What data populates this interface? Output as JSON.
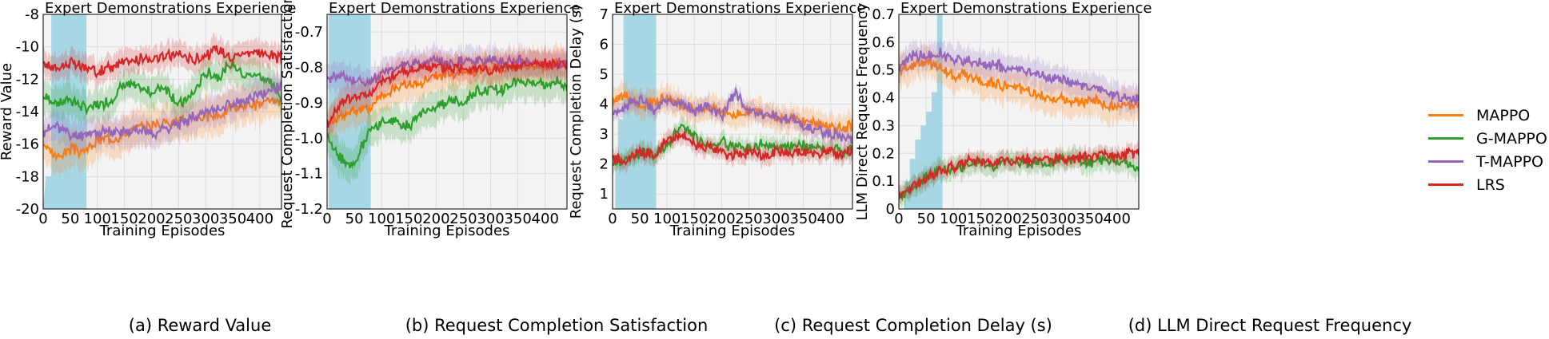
{
  "colors": {
    "MAPPO": "#ff7f0e",
    "G-MAPPO": "#2ca02c",
    "T-MAPPO": "#9467bd",
    "LRS": "#d62728",
    "expert": "#9fd3e3",
    "panel_bg": "#f4f4f4",
    "grid": "#dddddd"
  },
  "legend": [
    "MAPPO",
    "G-MAPPO",
    "T-MAPPO",
    "LRS"
  ],
  "captions": [
    "(a) Reward Value",
    "(b) Request Completion Satisfaction",
    "(c) Request Completion Delay (s)",
    "(d) LLM Direct Request Frequency"
  ],
  "chart_data": [
    {
      "type": "line",
      "title": "Expert Demonstrations Experience",
      "xlabel": "Training Episodes",
      "ylabel": "Reward Value",
      "xlim": [
        0,
        440
      ],
      "ylim": [
        -20,
        -8
      ],
      "xticks": [
        0,
        50,
        100,
        150,
        200,
        250,
        300,
        350,
        400
      ],
      "yticks": [
        -20,
        -18,
        -16,
        -14,
        -12,
        -10,
        -8
      ],
      "ytick_labels": [
        "-20",
        "-18",
        "-16",
        "-14",
        "-12",
        "-10",
        "-8"
      ],
      "expert_region": {
        "x_end": 80,
        "stair": [
          [
            0,
            -20
          ],
          [
            5,
            -18
          ],
          [
            15,
            -18
          ],
          [
            15,
            -8
          ],
          [
            80,
            -8
          ]
        ]
      },
      "x": [
        0,
        25,
        50,
        75,
        100,
        125,
        150,
        175,
        200,
        225,
        250,
        275,
        300,
        325,
        350,
        375,
        400,
        425,
        440
      ],
      "series": [
        {
          "name": "MAPPO",
          "values": [
            -16.0,
            -16.8,
            -16.3,
            -16.5,
            -15.8,
            -15.6,
            -15.4,
            -15.0,
            -14.8,
            -14.6,
            -14.6,
            -14.4,
            -14.3,
            -14.2,
            -13.7,
            -13.6,
            -13.5,
            -13.4,
            -13.3
          ],
          "band": 1.2
        },
        {
          "name": "G-MAPPO",
          "values": [
            -13.0,
            -13.5,
            -13.2,
            -13.8,
            -13.6,
            -13.3,
            -12.2,
            -12.6,
            -12.8,
            -12.4,
            -13.6,
            -13.0,
            -11.6,
            -11.8,
            -11.0,
            -11.8,
            -11.7,
            -12.4,
            -13.2
          ],
          "band": 1.0
        },
        {
          "name": "T-MAPPO",
          "values": [
            -15.3,
            -14.8,
            -15.5,
            -15.4,
            -15.3,
            -15.2,
            -15.3,
            -15.0,
            -15.4,
            -15.0,
            -14.8,
            -14.3,
            -14.0,
            -13.8,
            -13.5,
            -13.4,
            -13.0,
            -12.6,
            -12.3
          ],
          "band": 1.0
        },
        {
          "name": "LRS",
          "values": [
            -11.0,
            -11.3,
            -11.0,
            -11.3,
            -11.5,
            -11.2,
            -11.0,
            -10.8,
            -10.7,
            -10.6,
            -10.4,
            -10.8,
            -10.5,
            -10.2,
            -10.6,
            -10.3,
            -10.4,
            -10.5,
            -10.8
          ],
          "band": 0.8
        }
      ]
    },
    {
      "type": "line",
      "title": "Expert Demonstrations Experience",
      "xlabel": "Training Episodes",
      "ylabel": "Request Completion Satisfaction",
      "xlim": [
        0,
        440
      ],
      "ylim": [
        -1.2,
        -0.65
      ],
      "xticks": [
        0,
        50,
        100,
        150,
        200,
        250,
        300,
        350,
        400
      ],
      "yticks": [
        -1.2,
        -1.1,
        -1.0,
        -0.9,
        -0.8,
        -0.7
      ],
      "ytick_labels": [
        "-1.2",
        "-1.1",
        "-1.0",
        "-0.9",
        "-0.8",
        "-0.7"
      ],
      "expert_region": {
        "x_end": 80,
        "stair": [
          [
            0,
            -1.2
          ],
          [
            3,
            -1.2
          ],
          [
            3,
            -0.65
          ],
          [
            80,
            -0.65
          ]
        ]
      },
      "x": [
        0,
        25,
        50,
        75,
        100,
        125,
        150,
        175,
        200,
        225,
        250,
        275,
        300,
        325,
        350,
        375,
        400,
        425,
        440
      ],
      "series": [
        {
          "name": "MAPPO",
          "values": [
            -0.95,
            -0.94,
            -0.92,
            -0.92,
            -0.88,
            -0.86,
            -0.85,
            -0.84,
            -0.82,
            -0.82,
            -0.81,
            -0.81,
            -0.8,
            -0.8,
            -0.8,
            -0.79,
            -0.8,
            -0.79,
            -0.79
          ],
          "band": 0.05
        },
        {
          "name": "G-MAPPO",
          "values": [
            -1.0,
            -1.06,
            -1.08,
            -0.98,
            -0.95,
            -0.95,
            -0.97,
            -0.92,
            -0.91,
            -0.89,
            -0.9,
            -0.87,
            -0.86,
            -0.86,
            -0.84,
            -0.84,
            -0.85,
            -0.83,
            -0.86
          ],
          "band": 0.05
        },
        {
          "name": "T-MAPPO",
          "values": [
            -0.84,
            -0.82,
            -0.84,
            -0.84,
            -0.82,
            -0.8,
            -0.79,
            -0.79,
            -0.78,
            -0.79,
            -0.78,
            -0.78,
            -0.78,
            -0.79,
            -0.78,
            -0.79,
            -0.79,
            -0.79,
            -0.79
          ],
          "band": 0.04
        },
        {
          "name": "LRS",
          "values": [
            -0.96,
            -0.9,
            -0.88,
            -0.88,
            -0.84,
            -0.82,
            -0.81,
            -0.8,
            -0.8,
            -0.8,
            -0.8,
            -0.8,
            -0.81,
            -0.8,
            -0.8,
            -0.79,
            -0.79,
            -0.79,
            -0.79
          ],
          "band": 0.04
        }
      ]
    },
    {
      "type": "line",
      "title": "Expert Demonstrations Experience",
      "xlabel": "Training Episodes",
      "ylabel": "Request Completion Delay (s)",
      "xlim": [
        0,
        440
      ],
      "ylim": [
        0.5,
        7
      ],
      "xticks": [
        0,
        50,
        100,
        150,
        200,
        250,
        300,
        350,
        400
      ],
      "yticks": [
        1,
        2,
        3,
        4,
        5,
        6,
        7
      ],
      "ytick_labels": [
        "1",
        "2",
        "3",
        "4",
        "5",
        "6",
        "7"
      ],
      "expert_region": {
        "x_end": 80,
        "stair": [
          [
            0,
            0.5
          ],
          [
            5,
            0.5
          ],
          [
            5,
            2.2
          ],
          [
            10,
            2.2
          ],
          [
            10,
            3.5
          ],
          [
            20,
            3.5
          ],
          [
            20,
            7
          ],
          [
            80,
            7
          ]
        ]
      },
      "x": [
        0,
        25,
        50,
        75,
        100,
        125,
        150,
        175,
        200,
        225,
        250,
        275,
        300,
        325,
        350,
        375,
        400,
        425,
        440
      ],
      "series": [
        {
          "name": "MAPPO",
          "values": [
            4.1,
            4.3,
            4.0,
            4.1,
            4.2,
            4.0,
            3.8,
            3.9,
            3.8,
            3.6,
            3.8,
            3.7,
            3.6,
            3.5,
            3.4,
            3.4,
            3.2,
            3.2,
            3.3
          ],
          "band": 0.45
        },
        {
          "name": "G-MAPPO",
          "values": [
            2.0,
            2.2,
            2.4,
            2.3,
            2.6,
            3.3,
            2.9,
            2.6,
            2.7,
            2.6,
            2.5,
            2.7,
            2.6,
            2.6,
            2.6,
            2.5,
            2.5,
            2.4,
            2.5
          ],
          "band": 0.3
        },
        {
          "name": "T-MAPPO",
          "values": [
            3.6,
            3.9,
            4.2,
            3.8,
            4.1,
            4.0,
            3.8,
            3.9,
            3.6,
            4.4,
            3.8,
            3.6,
            3.6,
            3.5,
            3.2,
            3.1,
            3.0,
            2.9,
            2.9
          ],
          "band": 0.3
        },
        {
          "name": "LRS",
          "values": [
            2.2,
            2.1,
            2.4,
            2.3,
            2.8,
            3.0,
            2.7,
            2.5,
            2.4,
            2.3,
            2.4,
            2.3,
            2.4,
            2.3,
            2.4,
            2.3,
            2.4,
            2.3,
            2.5
          ],
          "band": 0.3
        }
      ]
    },
    {
      "type": "line",
      "title": "Expert Demonstrations Experience",
      "xlabel": "Training Episodes",
      "ylabel": "LLM Direct Request Frequency",
      "xlim": [
        0,
        440
      ],
      "ylim": [
        0,
        0.7
      ],
      "xticks": [
        0,
        50,
        100,
        150,
        200,
        250,
        300,
        350,
        400
      ],
      "yticks": [
        0,
        0.1,
        0.2,
        0.3,
        0.4,
        0.5,
        0.6,
        0.7
      ],
      "ytick_labels": [
        "0",
        "0.1",
        "0.2",
        "0.3",
        "0.4",
        "0.5",
        "0.6",
        "0.7"
      ],
      "expert_region": {
        "x_end": 80,
        "stair": [
          [
            0,
            0
          ],
          [
            10,
            0
          ],
          [
            10,
            0.1
          ],
          [
            20,
            0.1
          ],
          [
            20,
            0.18
          ],
          [
            30,
            0.18
          ],
          [
            30,
            0.25
          ],
          [
            40,
            0.25
          ],
          [
            40,
            0.3
          ],
          [
            50,
            0.3
          ],
          [
            50,
            0.35
          ],
          [
            60,
            0.35
          ],
          [
            60,
            0.42
          ],
          [
            70,
            0.42
          ],
          [
            70,
            0.7
          ],
          [
            80,
            0.7
          ]
        ]
      },
      "x": [
        0,
        25,
        50,
        75,
        100,
        125,
        150,
        175,
        200,
        225,
        250,
        275,
        300,
        325,
        350,
        375,
        400,
        425,
        440
      ],
      "series": [
        {
          "name": "MAPPO",
          "values": [
            0.5,
            0.52,
            0.53,
            0.51,
            0.48,
            0.48,
            0.46,
            0.45,
            0.44,
            0.43,
            0.41,
            0.4,
            0.4,
            0.39,
            0.39,
            0.38,
            0.37,
            0.37,
            0.38
          ],
          "band": 0.06
        },
        {
          "name": "G-MAPPO",
          "values": [
            0.05,
            0.07,
            0.11,
            0.14,
            0.15,
            0.16,
            0.17,
            0.16,
            0.18,
            0.17,
            0.17,
            0.16,
            0.18,
            0.18,
            0.17,
            0.18,
            0.17,
            0.16,
            0.15
          ],
          "band": 0.04
        },
        {
          "name": "T-MAPPO",
          "values": [
            0.51,
            0.55,
            0.55,
            0.56,
            0.54,
            0.53,
            0.52,
            0.52,
            0.5,
            0.5,
            0.49,
            0.47,
            0.47,
            0.45,
            0.44,
            0.42,
            0.41,
            0.4,
            0.4
          ],
          "band": 0.05
        },
        {
          "name": "LRS",
          "values": [
            0.05,
            0.08,
            0.11,
            0.14,
            0.15,
            0.17,
            0.17,
            0.17,
            0.17,
            0.18,
            0.18,
            0.18,
            0.18,
            0.19,
            0.19,
            0.19,
            0.19,
            0.2,
            0.21
          ],
          "band": 0.03
        }
      ]
    }
  ]
}
